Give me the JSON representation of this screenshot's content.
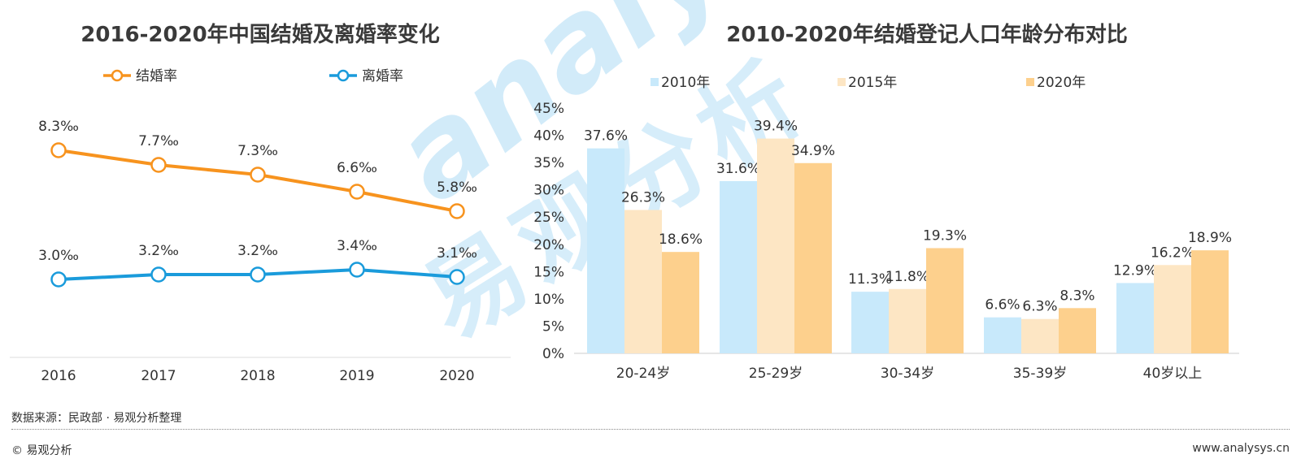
{
  "chart_data": [
    {
      "type": "line",
      "title": "2016-2020年中国结婚及离婚率变化",
      "categories": [
        "2016",
        "2017",
        "2018",
        "2019",
        "2020"
      ],
      "series": [
        {
          "name": "结婚率",
          "values": [
            8.3,
            7.7,
            7.3,
            6.6,
            5.8
          ],
          "labels": [
            "8.3‰",
            "7.7‰",
            "7.3‰",
            "6.6‰",
            "5.8‰"
          ],
          "color": "#F7931E"
        },
        {
          "name": "离婚率",
          "values": [
            3.0,
            3.2,
            3.2,
            3.4,
            3.1
          ],
          "labels": [
            "3.0‰",
            "3.2‰",
            "3.2‰",
            "3.4‰",
            "3.1‰"
          ],
          "color": "#1A9BDB"
        }
      ],
      "unit": "‰",
      "ylim": [
        0,
        10
      ],
      "grid": false,
      "legend_position": "top"
    },
    {
      "type": "bar",
      "title": "2010-2020年结婚登记人口年龄分布对比",
      "categories": [
        "20-24岁",
        "25-29岁",
        "30-34岁",
        "35-39岁",
        "40岁以上"
      ],
      "series": [
        {
          "name": "2010年",
          "values": [
            37.6,
            31.6,
            11.3,
            6.6,
            12.9
          ],
          "color": "#C8E9FB"
        },
        {
          "name": "2015年",
          "values": [
            26.3,
            39.4,
            11.8,
            6.3,
            16.2
          ],
          "color": "#FDE6C4"
        },
        {
          "name": "2020年",
          "values": [
            18.6,
            34.9,
            19.3,
            8.3,
            18.9
          ],
          "color": "#FDD08D"
        }
      ],
      "yticks": [
        "0%",
        "5%",
        "10%",
        "15%",
        "20%",
        "25%",
        "30%",
        "35%",
        "40%",
        "45%"
      ],
      "ylim": [
        0,
        45
      ],
      "unit": "%",
      "grid": false,
      "legend_position": "top"
    }
  ],
  "footer": {
    "source": "数据来源：民政部 · 易观分析整理",
    "copyright": "© 易观分析",
    "website": "www.analysys.cn"
  },
  "watermark": {
    "brand": "analysys",
    "cn": "易观分析"
  }
}
